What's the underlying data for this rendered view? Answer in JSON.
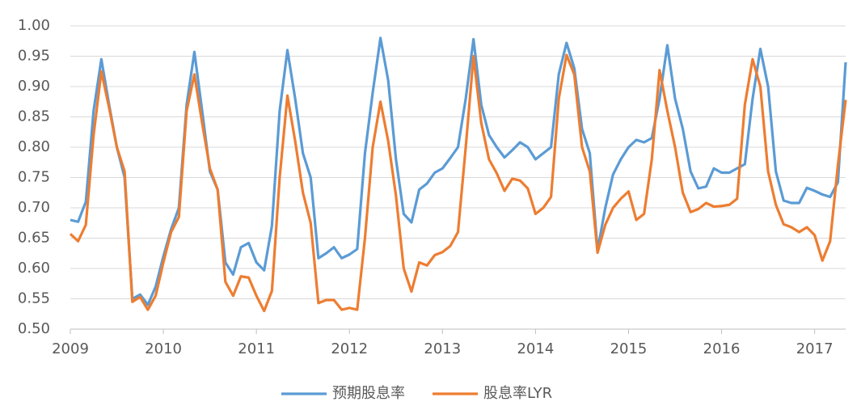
{
  "chart_data": {
    "type": "line",
    "categories": [
      "2009",
      null,
      null,
      null,
      null,
      null,
      null,
      null,
      null,
      null,
      null,
      null,
      "2010",
      null,
      null,
      null,
      null,
      null,
      null,
      null,
      null,
      null,
      null,
      null,
      "2011",
      null,
      null,
      null,
      null,
      null,
      null,
      null,
      null,
      null,
      null,
      null,
      "2012",
      null,
      null,
      null,
      null,
      null,
      null,
      null,
      null,
      null,
      null,
      null,
      "2013",
      null,
      null,
      null,
      null,
      null,
      null,
      null,
      null,
      null,
      null,
      null,
      "2014",
      null,
      null,
      null,
      null,
      null,
      null,
      null,
      null,
      null,
      null,
      null,
      "2015",
      null,
      null,
      null,
      null,
      null,
      null,
      null,
      null,
      null,
      null,
      null,
      "2016",
      null,
      null,
      null,
      null,
      null,
      null,
      null,
      null,
      null,
      null,
      null,
      "2017",
      null,
      null,
      null,
      null
    ],
    "series": [
      {
        "name": "预期股息率",
        "color": "#5b9bd5",
        "values": [
          0.68,
          0.677,
          0.71,
          0.86,
          0.945,
          0.87,
          0.8,
          0.75,
          0.55,
          0.557,
          0.54,
          0.57,
          0.62,
          0.665,
          0.7,
          0.87,
          0.957,
          0.86,
          0.76,
          0.73,
          0.61,
          0.59,
          0.635,
          0.642,
          0.61,
          0.597,
          0.67,
          0.86,
          0.96,
          0.88,
          0.79,
          0.75,
          0.617,
          0.625,
          0.635,
          0.617,
          0.623,
          0.632,
          0.79,
          0.89,
          0.98,
          0.91,
          0.78,
          0.69,
          0.676,
          0.73,
          0.74,
          0.758,
          0.765,
          0.782,
          0.8,
          0.88,
          0.978,
          0.87,
          0.82,
          0.8,
          0.783,
          0.795,
          0.808,
          0.8,
          0.78,
          0.79,
          0.8,
          0.92,
          0.972,
          0.93,
          0.83,
          0.79,
          0.63,
          0.7,
          0.755,
          0.78,
          0.8,
          0.812,
          0.808,
          0.815,
          0.88,
          0.968,
          0.88,
          0.83,
          0.76,
          0.732,
          0.735,
          0.765,
          0.758,
          0.758,
          0.765,
          0.772,
          0.88,
          0.962,
          0.9,
          0.76,
          0.712,
          0.708,
          0.708,
          0.733,
          0.728,
          0.722,
          0.718,
          0.742,
          0.94
        ]
      },
      {
        "name": "股息率LYR",
        "color": "#ed7d31",
        "values": [
          0.657,
          0.645,
          0.672,
          0.82,
          0.925,
          0.865,
          0.8,
          0.76,
          0.545,
          0.553,
          0.532,
          0.555,
          0.61,
          0.66,
          0.685,
          0.86,
          0.92,
          0.84,
          0.765,
          0.73,
          0.578,
          0.555,
          0.587,
          0.585,
          0.555,
          0.53,
          0.563,
          0.75,
          0.885,
          0.81,
          0.725,
          0.675,
          0.543,
          0.548,
          0.548,
          0.532,
          0.535,
          0.532,
          0.65,
          0.8,
          0.875,
          0.81,
          0.72,
          0.6,
          0.562,
          0.61,
          0.605,
          0.622,
          0.627,
          0.637,
          0.66,
          0.8,
          0.95,
          0.84,
          0.78,
          0.757,
          0.728,
          0.748,
          0.745,
          0.732,
          0.69,
          0.7,
          0.718,
          0.88,
          0.952,
          0.92,
          0.8,
          0.76,
          0.626,
          0.672,
          0.7,
          0.715,
          0.727,
          0.68,
          0.69,
          0.78,
          0.927,
          0.86,
          0.8,
          0.725,
          0.693,
          0.698,
          0.708,
          0.702,
          0.703,
          0.705,
          0.715,
          0.87,
          0.945,
          0.9,
          0.76,
          0.705,
          0.673,
          0.668,
          0.66,
          0.668,
          0.655,
          0.613,
          0.645,
          0.77,
          0.878
        ]
      }
    ],
    "ylim": [
      0.5,
      1
    ],
    "yticks": [
      {
        "value": 0.5,
        "label": "0.50"
      },
      0.55,
      {
        "value": 0.6,
        "label": "0.60"
      },
      0.65,
      {
        "value": 0.7,
        "label": "0.70"
      },
      0.75,
      {
        "value": 0.8,
        "label": "0.80"
      },
      0.85,
      {
        "value": 0.9,
        "label": "0.90"
      },
      0.95,
      {
        "value": 1,
        "label": "1.00"
      }
    ],
    "grid": true,
    "legend": "bottom"
  }
}
